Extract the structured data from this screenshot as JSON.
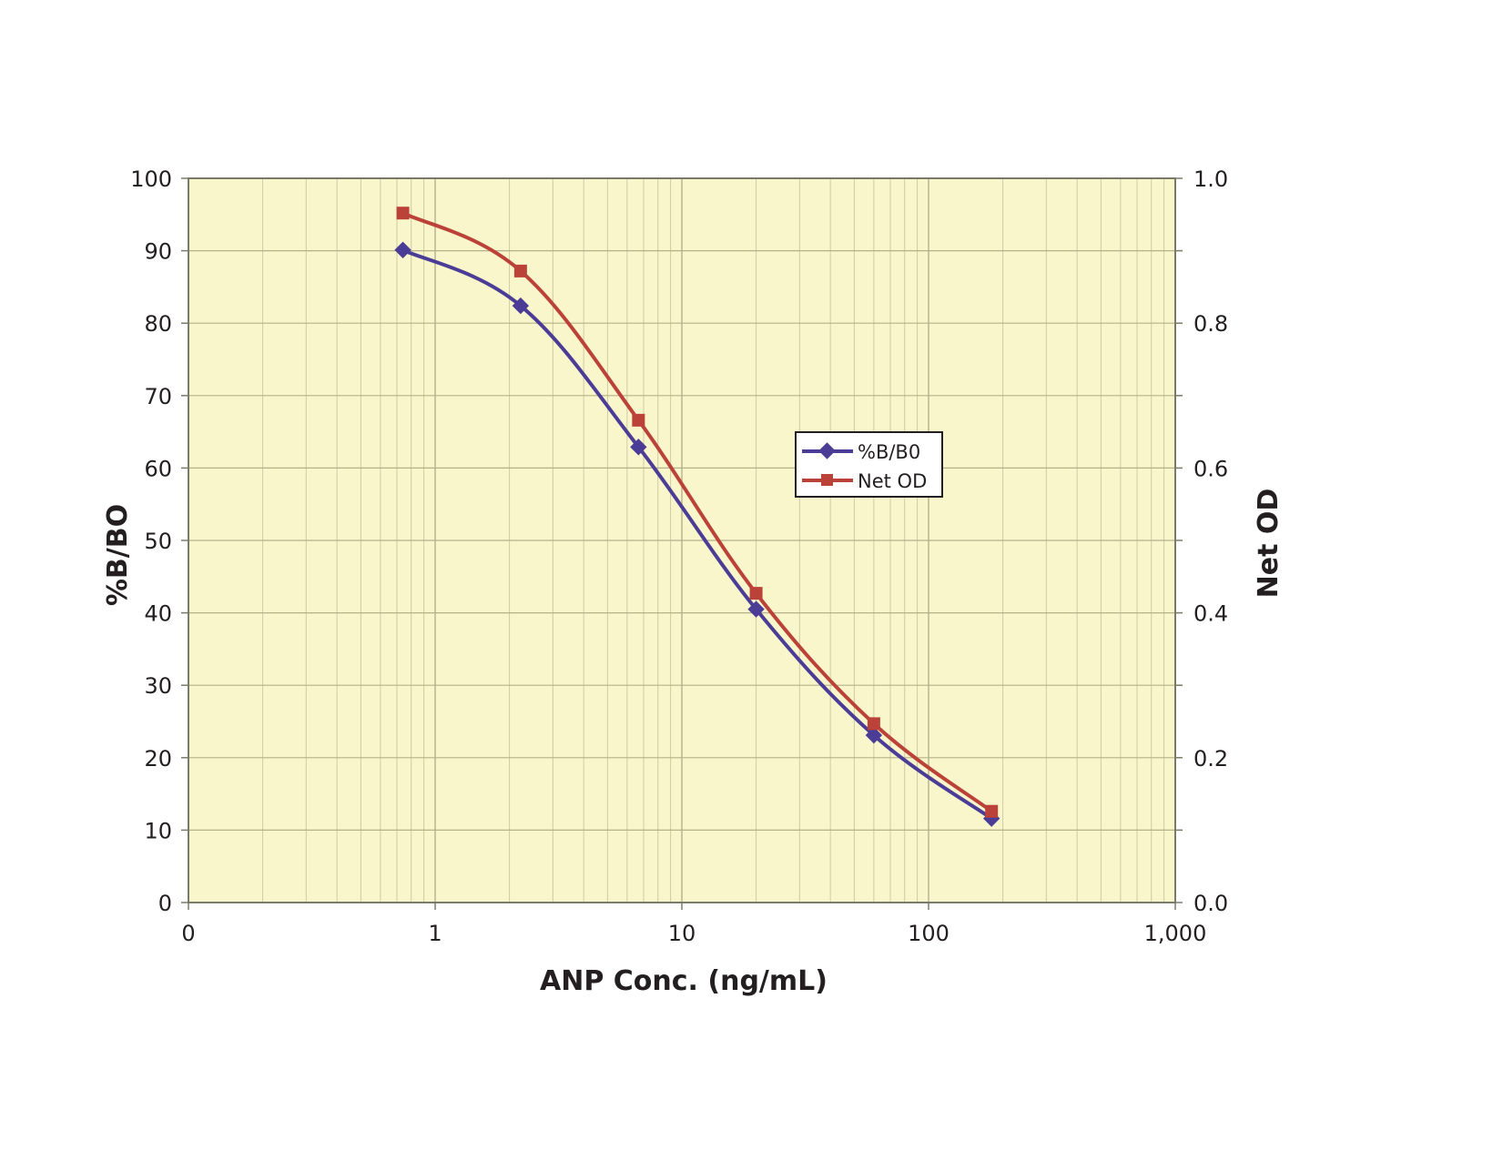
{
  "chart_data": {
    "type": "line",
    "title": "",
    "xlabel": "ANP Conc. (ng/mL)",
    "ylabel": "%B/BO",
    "y2label": "Net OD",
    "xscale": "log",
    "xlim": [
      0.1,
      1000
    ],
    "ylim": [
      0,
      100
    ],
    "y2lim": [
      0.0,
      1.0
    ],
    "x_tick_labels": [
      "0",
      "1",
      "10",
      "100",
      "1,000"
    ],
    "y_tick_labels": [
      "0",
      "10",
      "20",
      "30",
      "40",
      "50",
      "60",
      "70",
      "80",
      "90",
      "100"
    ],
    "y2_tick_labels": [
      "0.0",
      "0.2",
      "0.4",
      "0.6",
      "0.8",
      "1.0"
    ],
    "grid": true,
    "legend_position": "center-right (inside plot)",
    "x": [
      0.74,
      2.22,
      6.67,
      20,
      60,
      180
    ],
    "series": [
      {
        "name": "%B/B0",
        "axis": "left",
        "marker": "diamond",
        "color": "#4b3c96",
        "values": [
          90.1,
          82.4,
          62.9,
          40.5,
          23.1,
          11.6
        ]
      },
      {
        "name": "Net OD",
        "axis": "right",
        "marker": "square",
        "color": "#bb4238",
        "values": [
          0.952,
          0.872,
          0.666,
          0.427,
          0.247,
          0.126
        ]
      }
    ]
  },
  "colors": {
    "plot_background": "#faf6cc",
    "grid_major": "#b5b08a",
    "grid_minor": "#cfcaa4",
    "axis": "#7a7a6a"
  },
  "legend": {
    "items": [
      {
        "label": "%B/B0",
        "color": "#4b3c96",
        "marker": "diamond"
      },
      {
        "label": "Net OD",
        "color": "#bb4238",
        "marker": "square"
      }
    ]
  }
}
